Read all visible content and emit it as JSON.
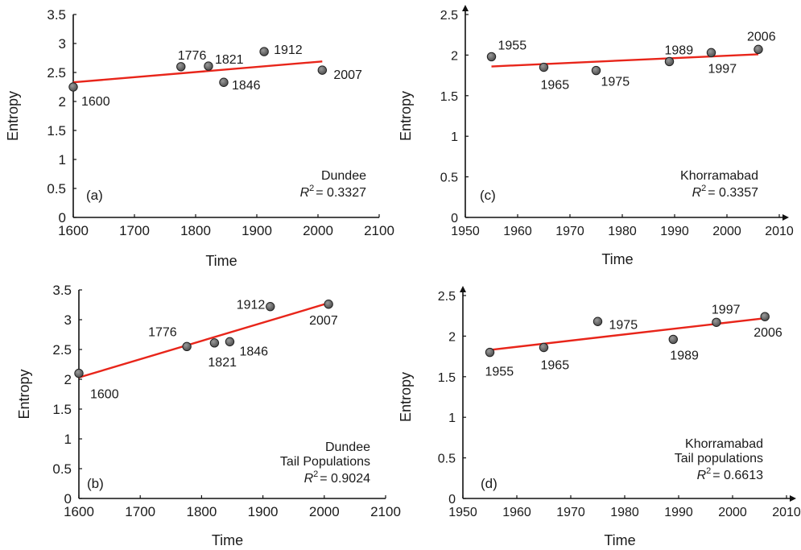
{
  "chart_data": [
    {
      "panel": "(a)",
      "type": "scatter",
      "xlabel": "Time",
      "ylabel": "Entropy",
      "xlim": [
        1600,
        2100
      ],
      "ylim": [
        0,
        3.5
      ],
      "xticks": [
        1600,
        1700,
        1800,
        1900,
        2000,
        2100
      ],
      "xtick_labels": [
        "1600",
        "1700",
        "1800",
        "1900",
        "2000",
        "2100"
      ],
      "yticks": [
        0,
        0.5,
        1,
        1.5,
        2,
        2.5,
        3,
        3.5
      ],
      "ytick_labels": [
        "0",
        "0.5",
        "1",
        "1.5",
        "2",
        "2.5",
        "3",
        "3.5"
      ],
      "points": [
        {
          "x": 1600,
          "y": 2.25,
          "label": "1600"
        },
        {
          "x": 1776,
          "y": 2.6,
          "label": "1776"
        },
        {
          "x": 1821,
          "y": 2.61,
          "label": "1821"
        },
        {
          "x": 1846,
          "y": 2.33,
          "label": "1846"
        },
        {
          "x": 1912,
          "y": 2.86,
          "label": "1912"
        },
        {
          "x": 2007,
          "y": 2.54,
          "label": "2007"
        }
      ],
      "trendline": {
        "x": [
          1600,
          2007
        ],
        "y": [
          2.33,
          2.69
        ]
      },
      "annotation": "Dundee",
      "r2_label": "R",
      "r2_value": "= 0.3327",
      "grid": false,
      "arrow_axes": false
    },
    {
      "panel": "(b)",
      "type": "scatter",
      "xlabel": "Time",
      "ylabel": "Entropy",
      "xlim": [
        1600,
        2100
      ],
      "ylim": [
        0,
        3.5
      ],
      "xticks": [
        1600,
        1700,
        1800,
        1900,
        2000,
        2100
      ],
      "xtick_labels": [
        "1600",
        "1700",
        "1800",
        "1900",
        "2000",
        "2100"
      ],
      "yticks": [
        0,
        0.5,
        1,
        1.5,
        2,
        2.5,
        3,
        3.5
      ],
      "ytick_labels": [
        "0",
        "0.5",
        "1",
        "1.5",
        "2",
        "2.5",
        "3",
        "3.5"
      ],
      "points": [
        {
          "x": 1600,
          "y": 2.1,
          "label": "1600"
        },
        {
          "x": 1776,
          "y": 2.55,
          "label": "1776"
        },
        {
          "x": 1821,
          "y": 2.61,
          "label": "1821"
        },
        {
          "x": 1846,
          "y": 2.63,
          "label": "1846"
        },
        {
          "x": 1912,
          "y": 3.22,
          "label": "1912"
        },
        {
          "x": 2007,
          "y": 3.26,
          "label": "2007"
        }
      ],
      "trendline": {
        "x": [
          1600,
          2007
        ],
        "y": [
          2.03,
          3.28
        ]
      },
      "annotation": "Dundee",
      "annotation2": "Tail Populations",
      "r2_label": "R",
      "r2_value": "= 0.9024",
      "grid": false,
      "arrow_axes": false
    },
    {
      "panel": "(c)",
      "type": "scatter",
      "xlabel": "Time",
      "ylabel": "Entropy",
      "xlim": [
        1950,
        2010
      ],
      "ylim": [
        0,
        2.5
      ],
      "xticks": [
        1950,
        1960,
        1970,
        1980,
        1990,
        2000,
        2010
      ],
      "xtick_labels": [
        "1950",
        "1960",
        "1970",
        "1980",
        "1990",
        "2000",
        "2010"
      ],
      "yticks": [
        0,
        0.5,
        1,
        1.5,
        2,
        2.5
      ],
      "ytick_labels": [
        "0",
        "0.5",
        "1",
        "1.5",
        "2",
        "2.5"
      ],
      "points": [
        {
          "x": 1955,
          "y": 1.98,
          "label": "1955"
        },
        {
          "x": 1965,
          "y": 1.85,
          "label": "1965"
        },
        {
          "x": 1975,
          "y": 1.81,
          "label": "1975"
        },
        {
          "x": 1989,
          "y": 1.92,
          "label": "1989"
        },
        {
          "x": 1997,
          "y": 2.03,
          "label": "1997"
        },
        {
          "x": 2006,
          "y": 2.07,
          "label": "2006"
        }
      ],
      "trendline": {
        "x": [
          1955,
          2006
        ],
        "y": [
          1.86,
          2.01
        ]
      },
      "annotation": "Khorramabad",
      "r2_label": "R",
      "r2_value": "= 0.3357",
      "grid": false,
      "arrow_axes": true
    },
    {
      "panel": "(d)",
      "type": "scatter",
      "xlabel": "Time",
      "ylabel": "Entropy",
      "xlim": [
        1950,
        2010
      ],
      "ylim": [
        0,
        2.5
      ],
      "xticks": [
        1950,
        1960,
        1970,
        1980,
        1990,
        2000,
        2010
      ],
      "xtick_labels": [
        "1950",
        "1960",
        "1970",
        "1980",
        "1990",
        "2000",
        "2010"
      ],
      "yticks": [
        0,
        0.5,
        1,
        1.5,
        2,
        2.5
      ],
      "ytick_labels": [
        "0",
        "0.5",
        "1",
        "1.5",
        "2",
        "2.5"
      ],
      "points": [
        {
          "x": 1955,
          "y": 1.8,
          "label": "1955"
        },
        {
          "x": 1965,
          "y": 1.86,
          "label": "1965"
        },
        {
          "x": 1975,
          "y": 2.18,
          "label": "1975"
        },
        {
          "x": 1989,
          "y": 1.96,
          "label": "1989"
        },
        {
          "x": 1997,
          "y": 2.17,
          "label": "1997"
        },
        {
          "x": 2006,
          "y": 2.24,
          "label": "2006"
        }
      ],
      "trendline": {
        "x": [
          1955,
          2006
        ],
        "y": [
          1.83,
          2.22
        ]
      },
      "annotation": "Khorramabad",
      "annotation2": "Tail populations",
      "r2_label": "R",
      "r2_value": "= 0.6613",
      "grid": false,
      "arrow_axes": true
    }
  ],
  "colors": {
    "trendline": "#e8251a",
    "marker_fill": "#4a4a4a",
    "marker_highlight": "#9a9a9a",
    "axis": "#111111",
    "text": "#1a1a1a"
  }
}
